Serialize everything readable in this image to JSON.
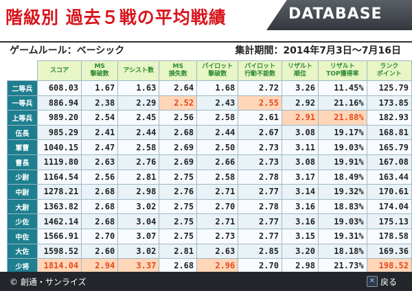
{
  "header": {
    "title": "階級別 過去５戦の平均戦績",
    "database_label": "DATABASE",
    "rule_label": "ゲームルール：ベーシック",
    "period_label": "集計期間：2014年7月3日〜7月16日"
  },
  "table": {
    "columns": [
      "スコア",
      "MS\n撃破数",
      "アシスト数",
      "MS\n損失数",
      "パイロット\n撃破数",
      "パイロット\n行動不能数",
      "リザルト\n順位",
      "リザルト\nTOP獲得率",
      "ランク\nポイント"
    ],
    "rows": [
      {
        "label": "二等兵",
        "values": [
          "608.03",
          "1.67",
          "1.63",
          "2.64",
          "1.68",
          "2.72",
          "3.26",
          "11.45%",
          "125.79"
        ]
      },
      {
        "label": "一等兵",
        "values": [
          "886.94",
          "2.38",
          "2.29",
          "2.52",
          "2.43",
          "2.55",
          "2.92",
          "21.16%",
          "173.85"
        ]
      },
      {
        "label": "上等兵",
        "values": [
          "989.20",
          "2.54",
          "2.45",
          "2.56",
          "2.58",
          "2.61",
          "2.91",
          "21.88%",
          "182.93"
        ]
      },
      {
        "label": "伍長",
        "values": [
          "985.29",
          "2.41",
          "2.44",
          "2.68",
          "2.44",
          "2.67",
          "3.08",
          "19.17%",
          "168.81"
        ]
      },
      {
        "label": "軍曹",
        "values": [
          "1040.15",
          "2.47",
          "2.58",
          "2.69",
          "2.50",
          "2.73",
          "3.11",
          "19.03%",
          "165.79"
        ]
      },
      {
        "label": "曹長",
        "values": [
          "1119.80",
          "2.63",
          "2.76",
          "2.69",
          "2.66",
          "2.73",
          "3.08",
          "19.91%",
          "167.08"
        ]
      },
      {
        "label": "少尉",
        "values": [
          "1164.54",
          "2.56",
          "2.81",
          "2.75",
          "2.58",
          "2.78",
          "3.17",
          "18.49%",
          "163.44"
        ]
      },
      {
        "label": "中尉",
        "values": [
          "1278.21",
          "2.68",
          "2.98",
          "2.76",
          "2.71",
          "2.77",
          "3.14",
          "19.32%",
          "170.61"
        ]
      },
      {
        "label": "大尉",
        "values": [
          "1363.82",
          "2.68",
          "3.02",
          "2.75",
          "2.70",
          "2.78",
          "3.16",
          "18.83%",
          "174.04"
        ]
      },
      {
        "label": "少佐",
        "values": [
          "1462.14",
          "2.68",
          "3.04",
          "2.75",
          "2.71",
          "2.77",
          "3.16",
          "19.03%",
          "175.13"
        ]
      },
      {
        "label": "中佐",
        "values": [
          "1566.91",
          "2.70",
          "3.07",
          "2.75",
          "2.73",
          "2.77",
          "3.15",
          "19.31%",
          "178.58"
        ]
      },
      {
        "label": "大佐",
        "values": [
          "1598.52",
          "2.60",
          "3.02",
          "2.81",
          "2.63",
          "2.85",
          "3.20",
          "18.18%",
          "169.36"
        ]
      },
      {
        "label": "少将",
        "values": [
          "1814.04",
          "2.94",
          "3.37",
          "2.68",
          "2.96",
          "2.70",
          "2.98",
          "21.73%",
          "198.52"
        ]
      }
    ],
    "highlights": [
      [
        1,
        3
      ],
      [
        1,
        5
      ],
      [
        2,
        6
      ],
      [
        2,
        7
      ],
      [
        12,
        0
      ],
      [
        12,
        1
      ],
      [
        12,
        2
      ],
      [
        12,
        4
      ],
      [
        12,
        8
      ]
    ]
  },
  "footer": {
    "copyright": "© 創通・サンライズ",
    "back_label": "戻る",
    "back_icon_glyph": "✕"
  },
  "colors": {
    "title_red": "#d8141c",
    "header_green": "#2a8a2f",
    "row_header_teal": "#1d7f8f",
    "highlight_orange": "#e6481c"
  }
}
